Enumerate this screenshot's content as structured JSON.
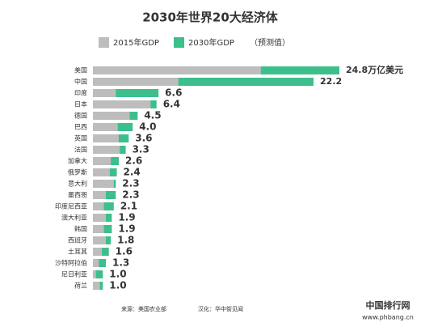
{
  "chart_data": {
    "type": "bar",
    "orientation": "horizontal",
    "title": "2030年世界20大经济体",
    "note": "（预测值）",
    "categories": [
      "美国",
      "中国",
      "印度",
      "日本",
      "德国",
      "巴西",
      "英国",
      "法国",
      "加拿大",
      "俄罗斯",
      "意大利",
      "墨西哥",
      "印度尼西亚",
      "澳大利亚",
      "韩国",
      "西班牙",
      "土耳其",
      "沙特阿拉伯",
      "尼日利亚",
      "荷兰"
    ],
    "series": [
      {
        "name": "2015年GDP",
        "color": "#bdbdbd",
        "values": [
          16.9,
          8.6,
          2.3,
          5.8,
          3.7,
          2.5,
          2.6,
          2.7,
          1.8,
          1.7,
          2.1,
          1.3,
          1.1,
          1.3,
          1.1,
          1.3,
          0.9,
          0.6,
          0.3,
          0.7
        ]
      },
      {
        "name": "2030年GDP",
        "color": "#3dbf8c",
        "values": [
          24.8,
          22.2,
          6.6,
          6.4,
          4.5,
          4.0,
          3.6,
          3.3,
          2.6,
          2.4,
          2.3,
          2.3,
          2.1,
          1.9,
          1.9,
          1.8,
          1.6,
          1.3,
          1.0,
          1.0
        ],
        "value_labels": [
          "24.8万亿美元",
          "22.2",
          "6.6",
          "6.4",
          "4.5",
          "4.0",
          "3.6",
          "3.3",
          "2.6",
          "2.4",
          "2.3",
          "2.3",
          "2.1",
          "1.9",
          "1.9",
          "1.8",
          "1.6",
          "1.3",
          "1.0",
          "1.0"
        ]
      }
    ],
    "source": "来源：美国农业部",
    "credit": "汉化：华中街见闻",
    "watermark": "中国排行网",
    "watermark_url": "www.phbang.cn"
  }
}
